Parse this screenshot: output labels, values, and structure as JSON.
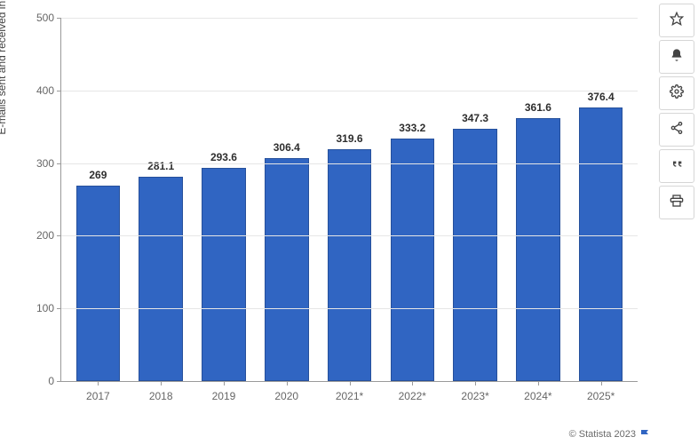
{
  "chart": {
    "type": "bar",
    "y_axis_label": "E-mails sent and received in billions",
    "categories": [
      "2017",
      "2018",
      "2019",
      "2020",
      "2021*",
      "2022*",
      "2023*",
      "2024*",
      "2025*"
    ],
    "values": [
      269,
      281.1,
      293.6,
      306.4,
      319.6,
      333.2,
      347.3,
      361.6,
      376.4
    ],
    "bar_fill": "#3065c2",
    "bar_border": "#26509b",
    "ylim": [
      0,
      500
    ],
    "ytick_step": 100,
    "yticks": [
      0,
      100,
      200,
      300,
      400,
      500
    ],
    "grid_color": "#e6e6e6",
    "axis_color": "#9a9a9a",
    "background_color": "#ffffff",
    "label_fontsize": 12,
    "value_fontsize": 12,
    "value_fontweight": "700",
    "bar_width": 0.7
  },
  "toolbar": {
    "items": [
      {
        "name": "favorite",
        "icon": "star"
      },
      {
        "name": "notify",
        "icon": "bell"
      },
      {
        "name": "settings",
        "icon": "gear"
      },
      {
        "name": "share",
        "icon": "share"
      },
      {
        "name": "citation",
        "icon": "quote"
      },
      {
        "name": "print",
        "icon": "print"
      }
    ]
  },
  "attribution": {
    "text": "© Statista 2023",
    "flag_color": "#3065c2"
  }
}
